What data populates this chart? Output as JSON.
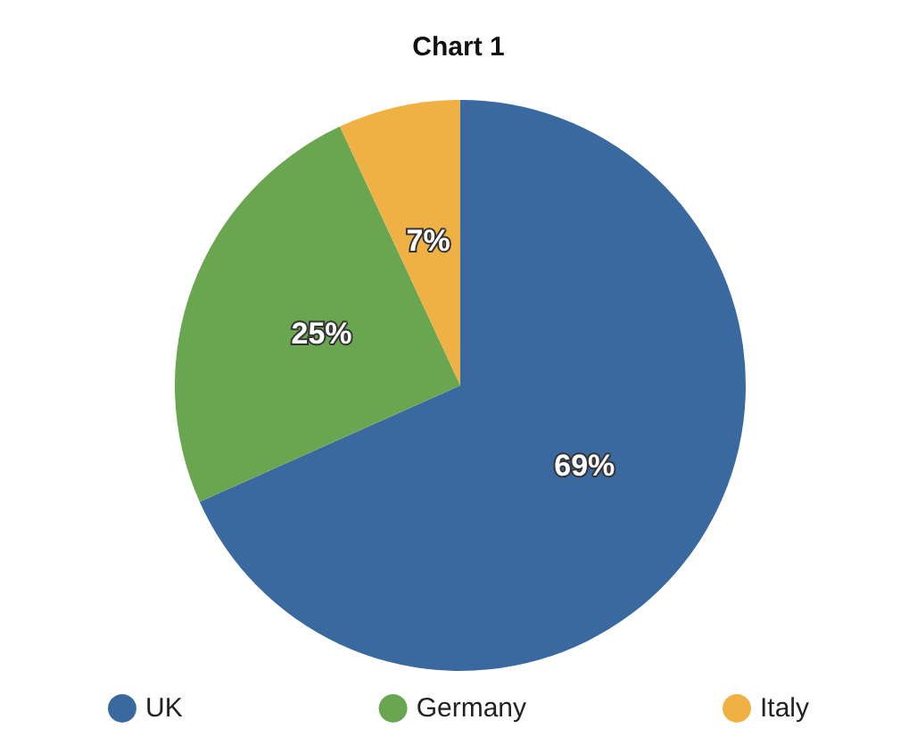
{
  "chart_data": {
    "type": "pie",
    "title": "Chart 1",
    "categories": [
      "UK",
      "Germany",
      "Italy"
    ],
    "values": [
      69,
      25,
      7
    ],
    "value_labels": [
      "69%",
      "25%",
      "7%"
    ],
    "colors": [
      "#39699f",
      "#6aa550",
      "#efb044"
    ],
    "legend": "bottom"
  }
}
